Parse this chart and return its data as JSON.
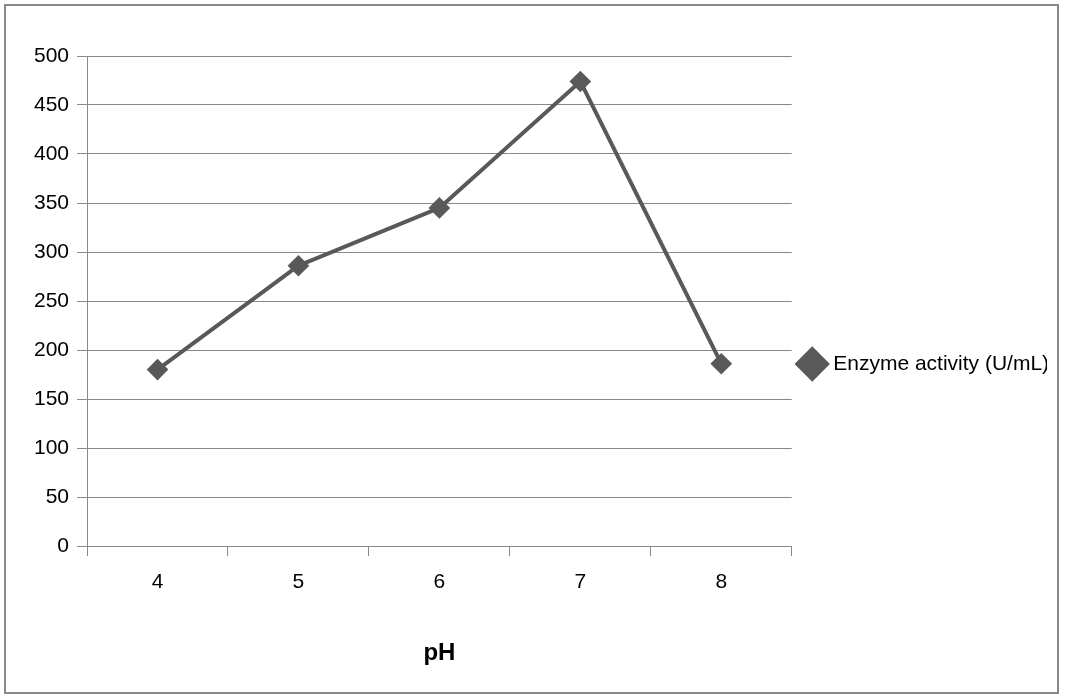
{
  "chart_data": {
    "type": "line",
    "xlabel": "pH",
    "categories": [
      "4",
      "5",
      "6",
      "7",
      "8"
    ],
    "series": [
      {
        "name": "Enzyme activity (U/mL)",
        "color": "#595959",
        "values": [
          180,
          286,
          345,
          474,
          186
        ]
      }
    ],
    "ylim": [
      0,
      500
    ],
    "yticks": [
      0,
      50,
      100,
      150,
      200,
      250,
      300,
      350,
      400,
      450,
      500
    ],
    "grid": "y",
    "legend": "right",
    "marker": "diamond",
    "line_style": "solid"
  }
}
